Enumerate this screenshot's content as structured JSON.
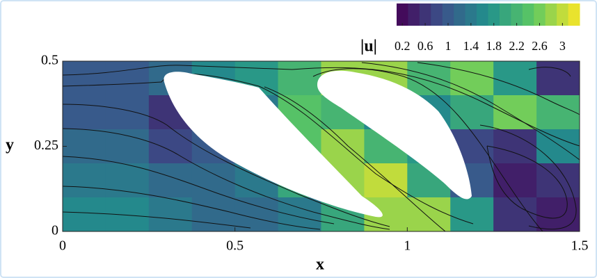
{
  "chart_data": {
    "type": "heatmap",
    "x_label": "x",
    "y_label": "y",
    "colorbar_label": "|u|",
    "colormap": "viridis",
    "clim": [
      0.1,
      3.3
    ],
    "cticks": [
      0.2,
      0.6,
      1,
      1.4,
      1.8,
      2.2,
      2.6,
      3
    ],
    "xlim": [
      0,
      1.5
    ],
    "ylim": [
      0,
      0.5
    ],
    "xticks": [
      0,
      0.5,
      1,
      1.5
    ],
    "yticks": [
      0,
      0.25,
      0.5
    ],
    "x": [
      0.0625,
      0.1875,
      0.3125,
      0.4375,
      0.5625,
      0.6875,
      0.8125,
      0.9375,
      1.0625,
      1.1875,
      1.3125,
      1.4375
    ],
    "y": [
      0.45,
      0.35,
      0.25,
      0.15,
      0.05
    ],
    "z": [
      [
        0.9,
        0.9,
        1.2,
        1.6,
        1.8,
        2.2,
        2.8,
        2.8,
        2.2,
        2.6,
        1.8,
        0.6
      ],
      [
        1.0,
        0.9,
        0.5,
        1.2,
        1.4,
        2.4,
        2.2,
        1.6,
        1.6,
        2.0,
        2.6,
        2.2
      ],
      [
        1.2,
        1.1,
        0.8,
        1.0,
        1.8,
        2.4,
        2.8,
        2.2,
        1.8,
        0.8,
        0.6,
        1.6
      ],
      [
        1.4,
        1.3,
        1.1,
        1.2,
        1.4,
        2.0,
        2.8,
        3.0,
        2.0,
        1.0,
        0.4,
        0.6
      ],
      [
        1.6,
        1.6,
        1.4,
        1.2,
        1.2,
        1.4,
        2.0,
        2.8,
        2.8,
        1.8,
        0.6,
        0.3
      ]
    ]
  }
}
